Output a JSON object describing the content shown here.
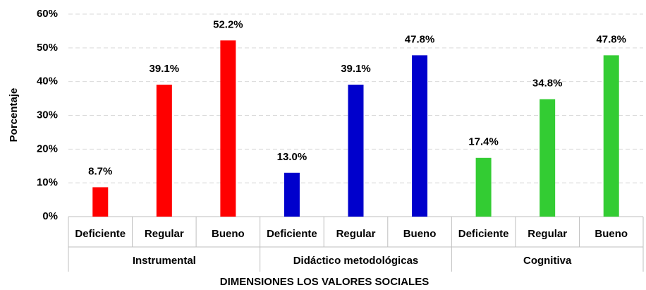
{
  "chart_data": {
    "type": "bar",
    "y_label": "Porcentaje",
    "x_label": "DIMENSIONES LOS VALORES SOCIALES",
    "ylim": [
      0,
      60
    ],
    "yticks": [
      {
        "value": 0,
        "label": "0%"
      },
      {
        "value": 10,
        "label": "10%"
      },
      {
        "value": 20,
        "label": "20%"
      },
      {
        "value": 30,
        "label": "30%"
      },
      {
        "value": 40,
        "label": "40%"
      },
      {
        "value": 50,
        "label": "50%"
      },
      {
        "value": 60,
        "label": "60%"
      }
    ],
    "grid": true,
    "groups": [
      {
        "name": "Instrumental",
        "color": "#ff0000",
        "categories": [
          "Deficiente",
          "Regular",
          "Bueno"
        ],
        "values": [
          8.7,
          39.1,
          52.2
        ],
        "value_labels": [
          "8.7%",
          "39.1%",
          "52.2%"
        ]
      },
      {
        "name": "Didáctico metodológicas",
        "color": "#0000cc",
        "categories": [
          "Deficiente",
          "Regular",
          "Bueno"
        ],
        "values": [
          13.0,
          39.1,
          47.8
        ],
        "value_labels": [
          "13.0%",
          "39.1%",
          "47.8%"
        ]
      },
      {
        "name": "Cognitiva",
        "color": "#33cc33",
        "categories": [
          "Deficiente",
          "Regular",
          "Bueno"
        ],
        "values": [
          17.4,
          34.8,
          47.8
        ],
        "value_labels": [
          "17.4%",
          "34.8%",
          "47.8%"
        ]
      }
    ]
  }
}
